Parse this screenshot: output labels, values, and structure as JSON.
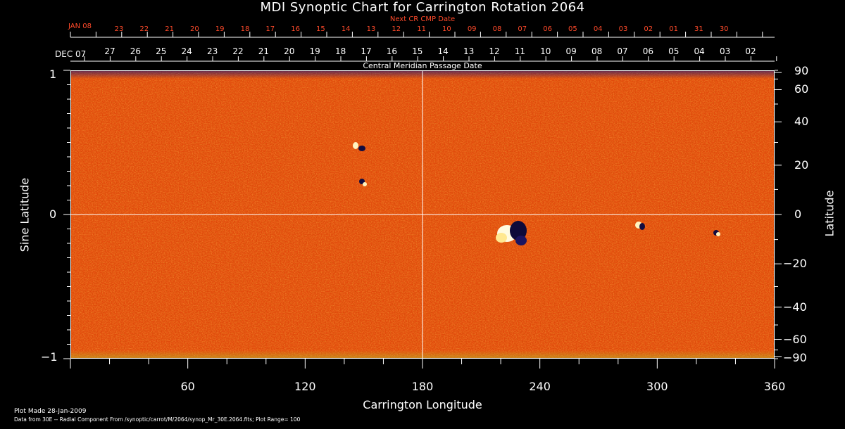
{
  "title": "MDI Synoptic Chart for Carrington Rotation 2064",
  "next_cmp_label": "Next CR CMP Date",
  "cmp_label": "Central Meridian Passage Date",
  "top_month_red": "JAN 08",
  "top_month_white": "DEC 07",
  "top_ticks_red": [
    "23",
    "22",
    "21",
    "20",
    "19",
    "18",
    "17",
    "16",
    "15",
    "14",
    "13",
    "12",
    "11",
    "10",
    "09",
    "08",
    "07",
    "06",
    "05",
    "04",
    "03",
    "02",
    "01",
    "31",
    "30"
  ],
  "top_ticks_white": [
    "27",
    "26",
    "25",
    "24",
    "23",
    "22",
    "21",
    "20",
    "19",
    "18",
    "17",
    "16",
    "15",
    "14",
    "13",
    "12",
    "11",
    "10",
    "09",
    "08",
    "07",
    "06",
    "05",
    "04",
    "03",
    "02"
  ],
  "left_axis": {
    "title": "Sine Latitude",
    "ticks": [
      "1",
      "0",
      "−1"
    ]
  },
  "right_axis": {
    "title": "Latitude",
    "ticks": [
      "90",
      "60",
      "40",
      "20",
      "0",
      "−20",
      "−40",
      "−60",
      "−90"
    ]
  },
  "bottom_axis": {
    "title": "Carrington Longitude",
    "ticks": [
      "60",
      "120",
      "180",
      "240",
      "300",
      "360"
    ]
  },
  "footer": {
    "line1": "Plot Made 28-Jan-2009",
    "line2": "Data from 30E -- Radial Component From /synoptic/carrot/M/2064/synop_Mr_30E.2064.fits; Plot Range=  100"
  },
  "colors": {
    "background": "#000000",
    "map_base": "#e84a10",
    "red_text": "#ff4a2a"
  }
}
